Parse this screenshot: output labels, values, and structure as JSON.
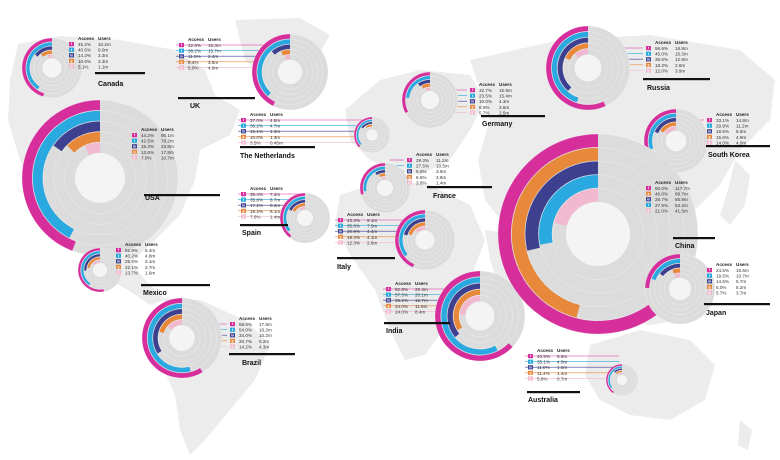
{
  "chart_data": {
    "type": "pie",
    "platform_colors": {
      "facebook": "#d62f9c",
      "twitter": "#29a9e0",
      "linkedin": "#3d3f8f",
      "google_plus": "#e8883a",
      "pinterest": "#f2b8cf"
    },
    "countries": [
      {
        "name": "Canada",
        "headers": [
          "Access",
          "Users"
        ],
        "rows": [
          {
            "platform": "facebook",
            "access": "45.2%",
            "users": "10.2m"
          },
          {
            "platform": "twitter",
            "access": "40.6%",
            "users": "9.0m"
          },
          {
            "platform": "linkedin",
            "access": "14.3%",
            "users": "3.3m"
          },
          {
            "platform": "google_plus",
            "access": "10.6%",
            "users": "2.3m"
          },
          {
            "platform": "pinterest",
            "access": "5.1%",
            "users": "1.1m"
          }
        ]
      },
      {
        "name": "UK",
        "headers": [
          "Access",
          "Users"
        ],
        "rows": [
          {
            "platform": "facebook",
            "access": "42.6%",
            "users": "15.3m"
          },
          {
            "platform": "twitter",
            "access": "38.2%",
            "users": "15.7m"
          },
          {
            "platform": "linkedin",
            "access": "11.5%",
            "users": "2.4m"
          },
          {
            "platform": "google_plus",
            "access": "6.4%",
            "users": "3.5m"
          },
          {
            "platform": "pinterest",
            "access": "5.0%",
            "users": "4.6m"
          }
        ]
      },
      {
        "name": "The Netherlands",
        "headers": [
          "Access",
          "Users"
        ],
        "rows": [
          {
            "platform": "facebook",
            "access": "37.0%",
            "users": "4.8m"
          },
          {
            "platform": "twitter",
            "access": "36.2%",
            "users": "4.7m"
          },
          {
            "platform": "linkedin",
            "access": "15.1%",
            "users": "1.3m"
          },
          {
            "platform": "google_plus",
            "access": "10.0%",
            "users": "1.3m"
          },
          {
            "platform": "pinterest",
            "access": "3.5%",
            "users": "0.45m"
          }
        ]
      },
      {
        "name": "USA",
        "headers": [
          "Access",
          "Users"
        ],
        "rows": [
          {
            "platform": "facebook",
            "access": "44.2%",
            "users": "90.1m"
          },
          {
            "platform": "twitter",
            "access": "42.5%",
            "users": "79.2m"
          },
          {
            "platform": "linkedin",
            "access": "15.3%",
            "users": "23.8m"
          },
          {
            "platform": "google_plus",
            "access": "12.6%",
            "users": "17.8m"
          },
          {
            "platform": "pinterest",
            "access": "7.0%",
            "users": "10.7m"
          }
        ]
      },
      {
        "name": "Spain",
        "headers": [
          "Access",
          "Users"
        ],
        "rows": [
          {
            "platform": "facebook",
            "access": "39.4%",
            "users": "7.4m"
          },
          {
            "platform": "twitter",
            "access": "35.8%",
            "users": "6.7m"
          },
          {
            "platform": "linkedin",
            "access": "17.2%",
            "users": "5.2m"
          },
          {
            "platform": "google_plus",
            "access": "16.2%",
            "users": "5.1m"
          },
          {
            "platform": "pinterest",
            "access": "7.5%",
            "users": "1.4m"
          }
        ]
      },
      {
        "name": "Mexico",
        "headers": [
          "Access",
          "Users"
        ],
        "rows": [
          {
            "platform": "facebook",
            "access": "52.9%",
            "users": "6.4m"
          },
          {
            "platform": "twitter",
            "access": "40.2%",
            "users": "4.8m"
          },
          {
            "platform": "linkedin",
            "access": "25.6%",
            "users": "3.1m"
          },
          {
            "platform": "google_plus",
            "access": "22.1%",
            "users": "2.7m"
          },
          {
            "platform": "pinterest",
            "access": "13.7%",
            "users": "1.6m"
          }
        ]
      },
      {
        "name": "Brazil",
        "headers": [
          "Access",
          "Users"
        ],
        "rows": [
          {
            "platform": "facebook",
            "access": "58.6%",
            "users": "17.8m"
          },
          {
            "platform": "twitter",
            "access": "54.0%",
            "users": "16.2m"
          },
          {
            "platform": "linkedin",
            "access": "34.0%",
            "users": "10.2m"
          },
          {
            "platform": "google_plus",
            "access": "20.7%",
            "users": "6.2m"
          },
          {
            "platform": "pinterest",
            "access": "14.2%",
            "users": "4.3m"
          }
        ]
      },
      {
        "name": "Germany",
        "headers": [
          "Access",
          "Users"
        ],
        "rows": [
          {
            "platform": "facebook",
            "access": "32.7%",
            "users": "15.9m"
          },
          {
            "platform": "twitter",
            "access": "23.5%",
            "users": "15.4m"
          },
          {
            "platform": "linkedin",
            "access": "10.0%",
            "users": "4.3m"
          },
          {
            "platform": "google_plus",
            "access": "8.5%",
            "users": "3.6m"
          },
          {
            "platform": "pinterest",
            "access": "5.7%",
            "users": "2.5m"
          }
        ]
      },
      {
        "name": "France",
        "headers": [
          "Access",
          "Users"
        ],
        "rows": [
          {
            "platform": "facebook",
            "access": "29.3%",
            "users": "11.2m"
          },
          {
            "platform": "twitter",
            "access": "27.5%",
            "users": "10.5m"
          },
          {
            "platform": "linkedin",
            "access": "9.0%",
            "users": "3.6m"
          },
          {
            "platform": "google_plus",
            "access": "6.5%",
            "users": "3.8m"
          },
          {
            "platform": "pinterest",
            "access": "3.8%",
            "users": "1.4m"
          }
        ]
      },
      {
        "name": "Italy",
        "headers": [
          "Access",
          "Users"
        ],
        "rows": [
          {
            "platform": "facebook",
            "access": "43.3%",
            "users": "9.1m"
          },
          {
            "platform": "twitter",
            "access": "35.8%",
            "users": "7.5m"
          },
          {
            "platform": "linkedin",
            "access": "20.9%",
            "users": "4.4m"
          },
          {
            "platform": "google_plus",
            "access": "19.4%",
            "users": "4.1m"
          },
          {
            "platform": "pinterest",
            "access": "12.3%",
            "users": "2.6m"
          }
        ]
      },
      {
        "name": "India",
        "headers": [
          "Access",
          "Users"
        ],
        "rows": [
          {
            "platform": "facebook",
            "access": "62.9%",
            "users": "22.4m"
          },
          {
            "platform": "twitter",
            "access": "57.5%",
            "users": "20.1m"
          },
          {
            "platform": "linkedin",
            "access": "36.2%",
            "users": "12.7m"
          },
          {
            "platform": "google_plus",
            "access": "34.0%",
            "users": "11.9m"
          },
          {
            "platform": "pinterest",
            "access": "24.0%",
            "users": "8.4m"
          }
        ]
      },
      {
        "name": "Russia",
        "headers": [
          "Access",
          "Users"
        ],
        "rows": [
          {
            "platform": "facebook",
            "access": "56.9%",
            "users": "18.8m"
          },
          {
            "platform": "twitter",
            "access": "45.0%",
            "users": "15.3m"
          },
          {
            "platform": "linkedin",
            "access": "38.6%",
            "users": "12.9m"
          },
          {
            "platform": "google_plus",
            "access": "18.3%",
            "users": "2.8m"
          },
          {
            "platform": "pinterest",
            "access": "12.0%",
            "users": "3.9m"
          }
        ]
      },
      {
        "name": "South Korea",
        "headers": [
          "Access",
          "Users"
        ],
        "rows": [
          {
            "platform": "facebook",
            "access": "33.1%",
            "users": "14.8m"
          },
          {
            "platform": "twitter",
            "access": "29.9%",
            "users": "11.2m"
          },
          {
            "platform": "linkedin",
            "access": "18.5%",
            "users": "5.5m"
          },
          {
            "platform": "google_plus",
            "access": "15.6%",
            "users": "4.9m"
          },
          {
            "platform": "pinterest",
            "access": "14.0%",
            "users": "4.0m"
          }
        ]
      },
      {
        "name": "China",
        "headers": [
          "Access",
          "Users"
        ],
        "rows": [
          {
            "platform": "facebook",
            "access": "60.0%",
            "users": "117.7m"
          },
          {
            "platform": "google_plus",
            "access": "46.0%",
            "users": "89.7m"
          },
          {
            "platform": "linkedin",
            "access": "28.7%",
            "users": "55.9m"
          },
          {
            "platform": "twitter",
            "access": "27.9%",
            "users": "53.2m"
          },
          {
            "platform": "pinterest",
            "access": "21.0%",
            "users": "41.5m"
          }
        ]
      },
      {
        "name": "Japan",
        "headers": [
          "Access",
          "Users"
        ],
        "rows": [
          {
            "platform": "facebook",
            "access": "24.5%",
            "users": "15.6m"
          },
          {
            "platform": "twitter",
            "access": "19.5%",
            "users": "10.7m"
          },
          {
            "platform": "linkedin",
            "access": "14.6%",
            "users": "6.7m"
          },
          {
            "platform": "google_plus",
            "access": "6.0%",
            "users": "5.2m"
          },
          {
            "platform": "pinterest",
            "access": "5.7%",
            "users": "3.7m"
          }
        ]
      },
      {
        "name": "Australia",
        "headers": [
          "Access",
          "Users"
        ],
        "rows": [
          {
            "platform": "facebook",
            "access": "40.5%",
            "users": "5.0m"
          },
          {
            "platform": "twitter",
            "access": "35.1%",
            "users": "4.0m"
          },
          {
            "platform": "linkedin",
            "access": "11.8%",
            "users": "1.5m"
          },
          {
            "platform": "google_plus",
            "access": "11.4%",
            "users": "1.4m"
          },
          {
            "platform": "pinterest",
            "access": "5.8%",
            "users": "0.7m"
          }
        ]
      }
    ]
  }
}
